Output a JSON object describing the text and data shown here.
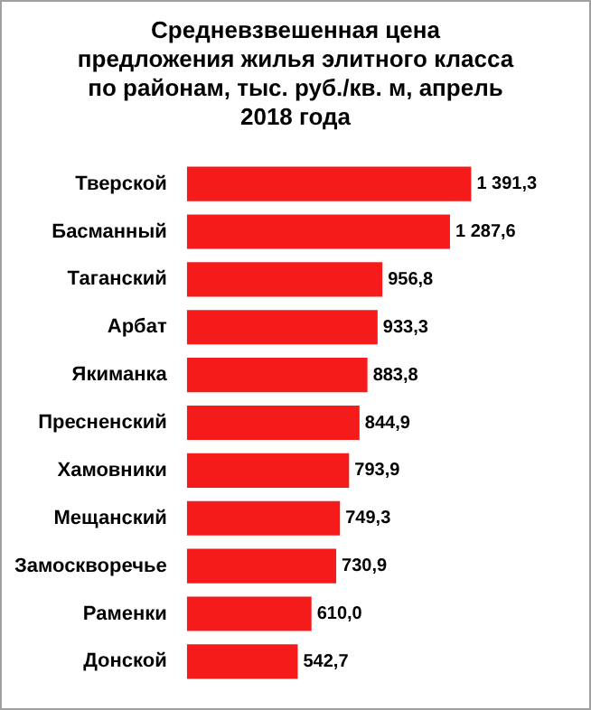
{
  "chart_data": {
    "type": "bar",
    "orientation": "horizontal",
    "title": "Средневзвешенная цена предложения жилья элитного  класса по районам, тыс. руб./кв. м, апрель 2018 года",
    "categories": [
      "Тверской",
      "Басманный",
      "Таганский",
      "Арбат",
      "Якиманка",
      "Пресненский",
      "Хамовники",
      "Мещанский",
      "Замоскворечье",
      "Раменки",
      "Донской"
    ],
    "values": [
      1391.3,
      1287.6,
      956.8,
      933.3,
      883.8,
      844.9,
      793.9,
      749.3,
      730.9,
      610.0,
      542.7
    ],
    "value_labels": [
      "1 391,3",
      "1 287,6",
      "956,8",
      "933,3",
      "883,8",
      "844,9",
      "793,9",
      "749,3",
      "730,9",
      "610,0",
      "542,7"
    ],
    "color": "#f51b1b",
    "legend": false
  }
}
